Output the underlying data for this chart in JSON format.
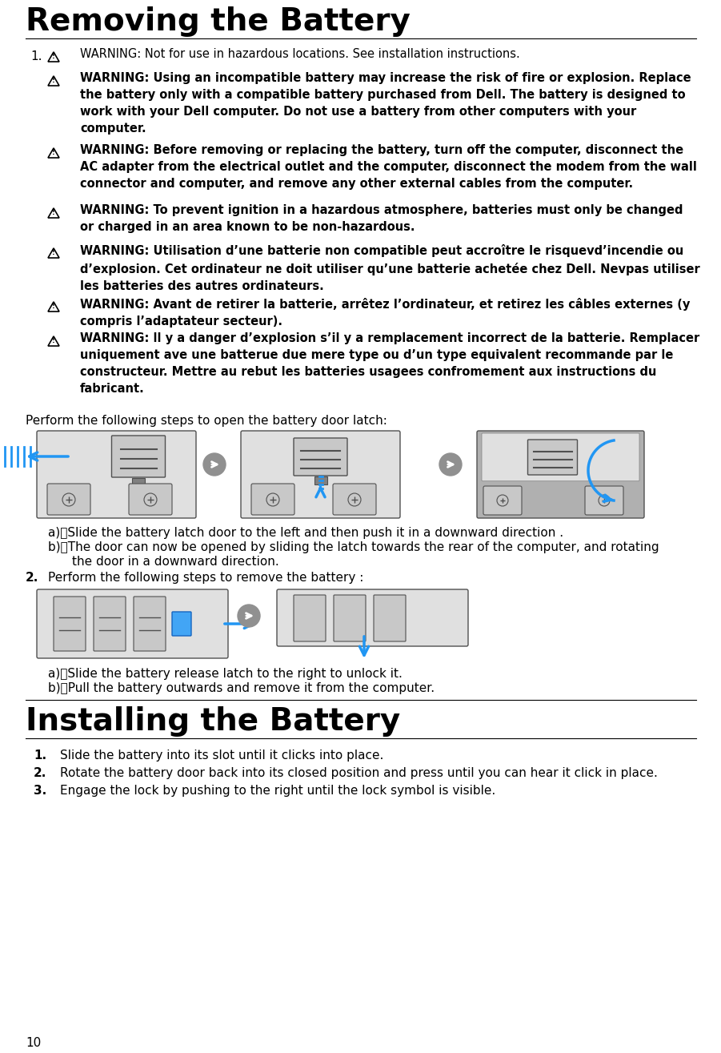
{
  "title": "Removing the Battery",
  "title2": "Installing the Battery",
  "bg_color": "#ffffff",
  "text_color": "#000000",
  "page_number": "10",
  "w1": "WARNING: Not for use in hazardous locations. See installation instructions.",
  "w2": "WARNING: Using an incompatible battery may increase the risk of fire or explosion. Replace\nthe battery only with a compatible battery purchased from Dell. The battery is designed to\nwork with your Dell computer. Do not use a battery from other computers with your\ncomputer.",
  "w3": "WARNING: Before removing or replacing the battery, turn off the computer, disconnect the\nAC adapter from the electrical outlet and the computer, disconnect the modem from the wall\nconnector and computer, and remove any other external cables from the computer.",
  "w4": "WARNING: To prevent ignition in a hazardous atmosphere, batteries must only be changed\nor charged in an area known to be non-hazardous.",
  "w5": "WARNING: Utilisation d’une batterie non compatible peut accroître le risquevd’incendie ou\nd’explosion. Cet ordinateur ne doit utiliser qu’une batterie achetée chez Dell. Nevpas utiliser\nles batteries des autres ordinateurs.",
  "w6": "WARNING: Avant de retirer la batterie, arrêtez l’ordinateur, et retirez les câbles externes (y\ncompris l’adaptateur secteur).",
  "w7": "WARNING: ll y a danger d’explosion s’il y a remplacement incorrect de la batterie. Remplacer\nuniquement ave une batterue due mere type ou d’un type equivalent recommande par le\nconstructeur. Mettre au rebut les batteries usagees confromement aux instructions du\nfabricant.",
  "perform_text1": "Perform the following steps to open the battery door latch:",
  "step1a": "a)\tSlide the battery latch door to the left and then push it in a downward direction .",
  "step1b_line1": "b)\tThe door can now be opened by sliding the latch towards the rear of the computer, and rotating",
  "step1b_line2": "\tthe door in a downward direction.",
  "item2_text": "Perform the following steps to remove the battery :",
  "step2a": "a)\tSlide the battery release latch to the right to unlock it.",
  "step2b": "b)\tPull the battery outwards and remove it from the computer.",
  "install_step1": "Slide the battery into its slot until it clicks into place.",
  "install_step2": "Rotate the battery door back into its closed position and press until you can hear it click in place.",
  "install_step3": "Engage the lock by pushing to the right until the lock symbol is visible.",
  "warn_bold": true,
  "diag1_gray": "#c8c8c8",
  "diag2_gray": "#b0b0b0",
  "diag_blue": "#2196f3",
  "diag_dark": "#505050",
  "diag_mid": "#808080",
  "diag_light": "#e0e0e0",
  "connector_gray": "#909090"
}
